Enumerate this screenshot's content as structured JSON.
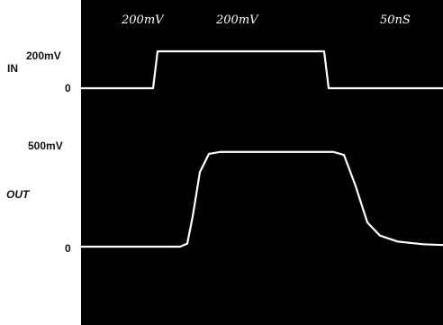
{
  "chart_data": {
    "type": "line",
    "title": "",
    "header_labels": [
      "200mV",
      "200mV",
      "50nS"
    ],
    "series": [
      {
        "name": "IN",
        "points": [
          [
            0,
            0
          ],
          [
            80,
            0
          ],
          [
            85,
            200
          ],
          [
            270,
            200
          ],
          [
            275,
            0
          ],
          [
            402,
            0
          ]
        ]
      },
      {
        "name": "OUT",
        "points": [
          [
            0,
            0
          ],
          [
            110,
            0
          ],
          [
            118,
            15
          ],
          [
            124,
            150
          ],
          [
            132,
            370
          ],
          [
            142,
            460
          ],
          [
            155,
            470
          ],
          [
            280,
            470
          ],
          [
            292,
            455
          ],
          [
            305,
            300
          ],
          [
            318,
            120
          ],
          [
            332,
            55
          ],
          [
            352,
            25
          ],
          [
            380,
            12
          ],
          [
            402,
            8
          ]
        ]
      }
    ],
    "in_labels": {
      "name": "IN",
      "high": "200mV",
      "zero": "0"
    },
    "out_labels": {
      "name": "OUT",
      "high": "500mV",
      "zero": "0"
    },
    "x_unit": "nS",
    "grid": false
  },
  "colors": {
    "background": "#000000",
    "trace": "#ffffff",
    "label": "#111111"
  }
}
